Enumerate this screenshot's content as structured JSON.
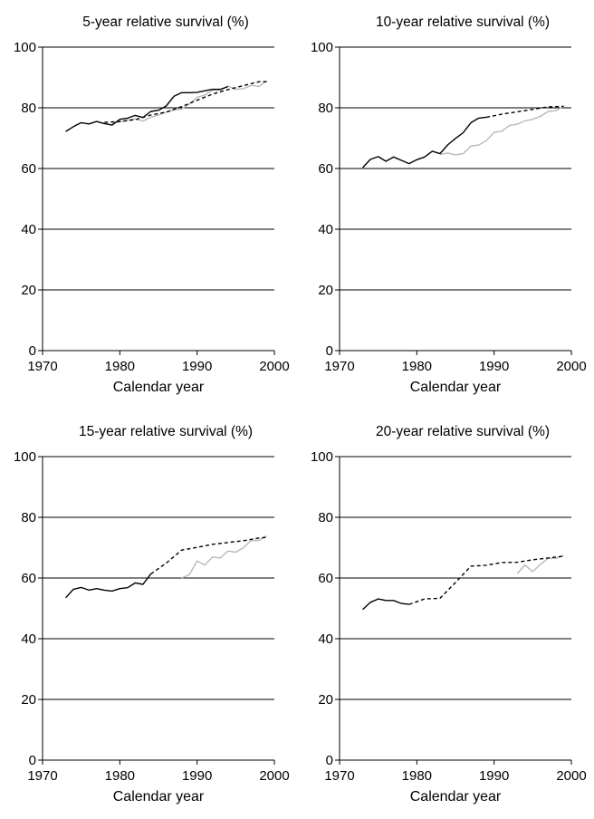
{
  "chart_data": [
    {
      "type": "line",
      "title": "5-year relative survival (%)",
      "xlabel": "Calendar year",
      "ylabel": "",
      "xlim": [
        1970,
        2000
      ],
      "ylim": [
        0,
        100
      ],
      "x_ticks": [
        "1970",
        "1980",
        "1990",
        "2000"
      ],
      "y_ticks": [
        "0",
        "20",
        "40",
        "60",
        "80",
        "100"
      ],
      "grid": "horizontal",
      "series": [
        {
          "style": "solid-black",
          "x": [
            1973,
            1974,
            1975,
            1976,
            1977,
            1978,
            1979,
            1980,
            1981,
            1982,
            1983,
            1984,
            1985,
            1986,
            1987,
            1988,
            1989,
            1990,
            1991,
            1992,
            1993,
            1994
          ],
          "y": [
            72.2,
            73.8,
            75.1,
            74.7,
            75.5,
            74.8,
            74.3,
            76.2,
            76.6,
            77.5,
            76.8,
            78.8,
            79.2,
            80.6,
            83.8,
            85.0,
            85.0,
            85.1,
            85.6,
            86.1,
            86.1,
            87.0
          ]
        },
        {
          "style": "dashed-black",
          "x": [
            1978,
            1980,
            1982,
            1984,
            1986,
            1988,
            1990,
            1992,
            1994,
            1996,
            1998,
            1999
          ],
          "y": [
            75.2,
            75.5,
            76.1,
            77.6,
            78.6,
            80.4,
            82.5,
            84.5,
            86.0,
            87.3,
            88.6,
            88.6
          ]
        },
        {
          "style": "solid-grey",
          "x": [
            1979,
            1980,
            1981,
            1982,
            1983,
            1984,
            1985,
            1986,
            1987,
            1988,
            1989,
            1990,
            1991,
            1992,
            1993,
            1994,
            1995,
            1996,
            1997,
            1998,
            1999
          ],
          "y": [
            74.9,
            75.4,
            76.0,
            76.4,
            75.6,
            76.9,
            77.6,
            78.5,
            79.3,
            79.6,
            81.2,
            83.4,
            84.2,
            85.8,
            85.8,
            87.2,
            86.1,
            86.3,
            87.4,
            87.0,
            88.9
          ]
        }
      ]
    },
    {
      "type": "line",
      "title": "10-year relative survival (%)",
      "xlabel": "Calendar year",
      "ylabel": "",
      "xlim": [
        1970,
        2000
      ],
      "ylim": [
        0,
        100
      ],
      "x_ticks": [
        "1970",
        "1980",
        "1990",
        "2000"
      ],
      "y_ticks": [
        "0",
        "20",
        "40",
        "60",
        "80",
        "100"
      ],
      "grid": "horizontal",
      "series": [
        {
          "style": "solid-black",
          "x": [
            1973,
            1974,
            1975,
            1976,
            1977,
            1978,
            1979,
            1980,
            1981,
            1982,
            1983,
            1984,
            1985,
            1986,
            1987,
            1988,
            1989
          ],
          "y": [
            60.3,
            63.0,
            63.9,
            62.4,
            63.8,
            62.7,
            61.6,
            62.9,
            63.8,
            65.7,
            64.9,
            67.8,
            69.9,
            71.8,
            75.1,
            76.6,
            76.9
          ]
        },
        {
          "style": "dashed-black",
          "x": [
            1989,
            1991,
            1993,
            1995,
            1997,
            1999
          ],
          "y": [
            76.9,
            77.9,
            78.7,
            79.5,
            80.3,
            80.5
          ]
        },
        {
          "style": "solid-grey",
          "x": [
            1983,
            1984,
            1985,
            1986,
            1987,
            1988,
            1989,
            1990,
            1991,
            1992,
            1993,
            1994,
            1995,
            1996,
            1997,
            1998,
            1999
          ],
          "y": [
            64.6,
            65.1,
            64.5,
            64.9,
            67.4,
            67.7,
            69.2,
            71.9,
            72.3,
            74.2,
            74.6,
            75.7,
            76.2,
            77.2,
            78.8,
            79.0,
            80.6
          ]
        }
      ]
    },
    {
      "type": "line",
      "title": "15-year relative survival (%)",
      "xlabel": "Calendar year",
      "ylabel": "",
      "xlim": [
        1970,
        2000
      ],
      "ylim": [
        0,
        100
      ],
      "x_ticks": [
        "1970",
        "1980",
        "1990",
        "2000"
      ],
      "y_ticks": [
        "0",
        "20",
        "40",
        "60",
        "80",
        "100"
      ],
      "grid": "horizontal",
      "series": [
        {
          "style": "solid-black",
          "x": [
            1973,
            1974,
            1975,
            1976,
            1977,
            1978,
            1979,
            1980,
            1981,
            1982,
            1983,
            1984
          ],
          "y": [
            53.5,
            56.3,
            56.9,
            56.0,
            56.5,
            56.0,
            55.7,
            56.5,
            56.8,
            58.4,
            57.9,
            61.3
          ]
        },
        {
          "style": "dashed-black",
          "x": [
            1984,
            1986,
            1988,
            1990,
            1992,
            1994,
            1996,
            1998,
            1999
          ],
          "y": [
            61.3,
            64.9,
            69.2,
            70.1,
            71.1,
            71.7,
            72.3,
            73.2,
            73.4
          ]
        },
        {
          "style": "solid-grey",
          "x": [
            1988,
            1989,
            1990,
            1991,
            1992,
            1993,
            1994,
            1995,
            1996,
            1997,
            1998,
            1999
          ],
          "y": [
            60.0,
            61.1,
            65.6,
            64.3,
            66.9,
            66.6,
            68.9,
            68.5,
            70.0,
            72.4,
            72.4,
            73.9
          ]
        }
      ]
    },
    {
      "type": "line",
      "title": "20-year relative survival (%)",
      "xlabel": "Calendar year",
      "ylabel": "",
      "xlim": [
        1970,
        2000
      ],
      "ylim": [
        0,
        100
      ],
      "x_ticks": [
        "1970",
        "1980",
        "1990",
        "2000"
      ],
      "y_ticks": [
        "0",
        "20",
        "40",
        "60",
        "80",
        "100"
      ],
      "grid": "horizontal",
      "series": [
        {
          "style": "solid-black",
          "x": [
            1973,
            1974,
            1975,
            1976,
            1977,
            1978,
            1979
          ],
          "y": [
            49.6,
            52.0,
            53.1,
            52.6,
            52.6,
            51.6,
            51.3
          ]
        },
        {
          "style": "dashed-black",
          "x": [
            1979,
            1981,
            1983,
            1985,
            1987,
            1989,
            1991,
            1993,
            1995,
            1997,
            1999
          ],
          "y": [
            51.3,
            53.1,
            53.3,
            58.5,
            63.9,
            64.2,
            65.1,
            65.2,
            66.0,
            66.6,
            67.2
          ]
        },
        {
          "style": "solid-grey",
          "x": [
            1993,
            1994,
            1995,
            1996,
            1997,
            1998,
            1999
          ],
          "y": [
            61.5,
            64.3,
            62.1,
            64.5,
            66.5,
            66.5,
            67.4
          ]
        }
      ]
    }
  ],
  "colors": {
    "black": "#000000",
    "grey": "#b8b8b8",
    "grid": "#000000"
  }
}
